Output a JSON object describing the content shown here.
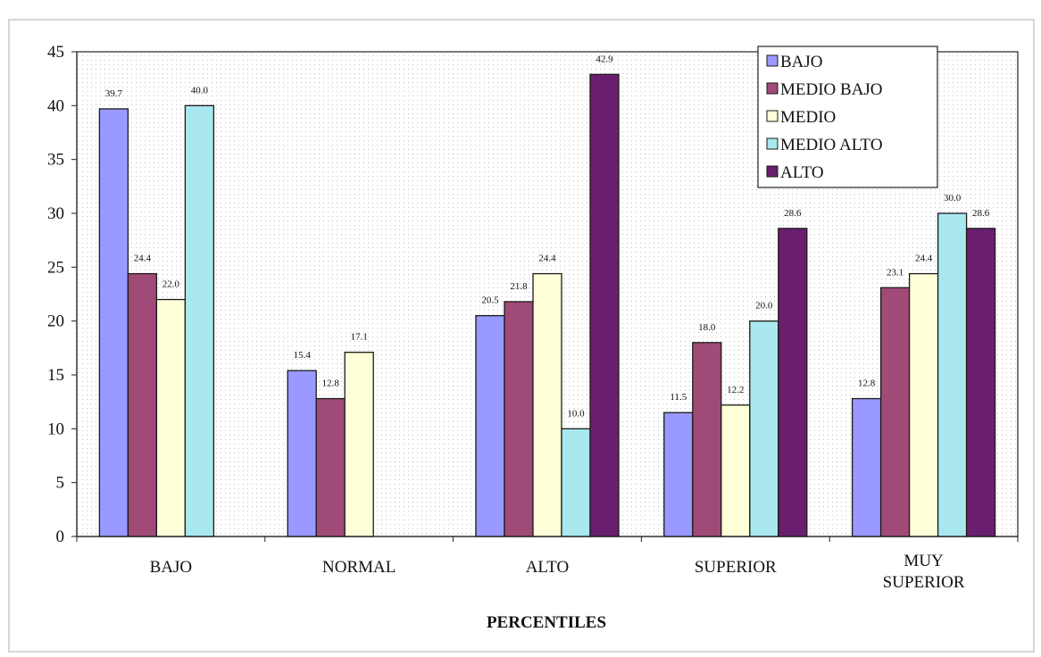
{
  "chart_data": {
    "type": "bar",
    "title": "",
    "xlabel": "PERCENTILES",
    "ylabel": "",
    "ylim": [
      0,
      45
    ],
    "yticks": [
      0,
      5,
      10,
      15,
      20,
      25,
      30,
      35,
      40,
      45
    ],
    "grid": true,
    "legend_position": "top-right",
    "categories": [
      "BAJO",
      "NORMAL",
      "ALTO",
      "SUPERIOR",
      "MUY SUPERIOR"
    ],
    "series": [
      {
        "name": "BAJO",
        "color": "#9999ff",
        "values": [
          39.7,
          15.4,
          20.5,
          11.5,
          12.8
        ],
        "labels": [
          "39.7",
          "15.4",
          "20.5",
          "11.5",
          "12.8"
        ]
      },
      {
        "name": "MEDIO BAJO",
        "color": "#a04a78",
        "values": [
          24.4,
          12.8,
          21.8,
          18.0,
          23.1
        ],
        "labels": [
          "24.4",
          "12.8",
          "21.8",
          "18.0",
          "23.1"
        ]
      },
      {
        "name": "MEDIO",
        "color": "#ffffd8",
        "values": [
          22.0,
          17.1,
          24.4,
          12.2,
          24.4
        ],
        "labels": [
          "22.0",
          "17.1",
          "24.4",
          "12.2",
          "24.4"
        ]
      },
      {
        "name": "MEDIO ALTO",
        "color": "#a8e8ee",
        "values": [
          40.0,
          null,
          10.0,
          20.0,
          30.0
        ],
        "labels": [
          "40.0",
          "",
          "10.0",
          "20.0",
          "30.0"
        ]
      },
      {
        "name": "ALTO",
        "color": "#6a1f6e",
        "values": [
          null,
          null,
          42.9,
          28.6,
          28.6
        ],
        "labels": [
          "",
          "",
          "42.9",
          "28.6",
          "28.6"
        ]
      }
    ]
  }
}
